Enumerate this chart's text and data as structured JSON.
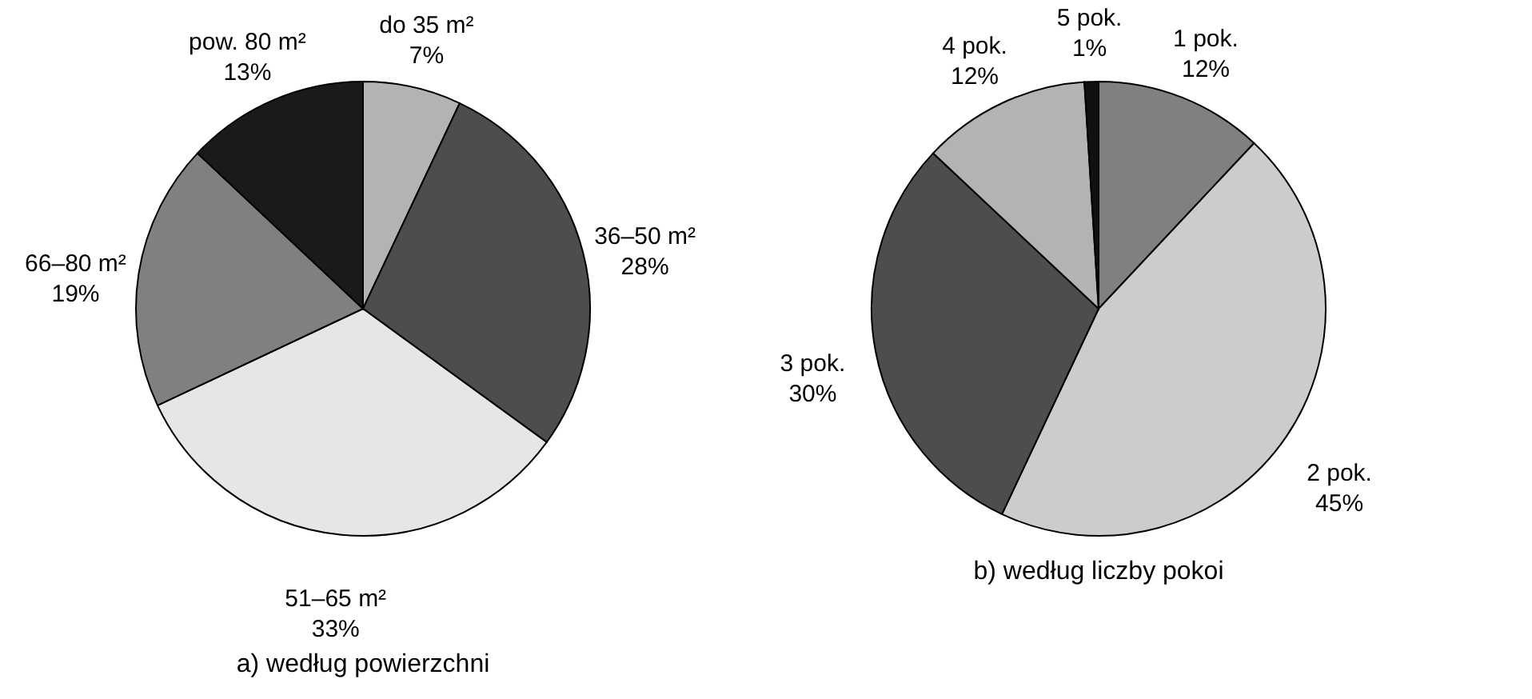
{
  "chart_data": [
    {
      "type": "pie",
      "title": "a) według powierzchni",
      "categories": [
        "do 35 m²",
        "36–50 m²",
        "51–65 m²",
        "66–80 m²",
        "pow. 80 m²"
      ],
      "values": [
        7,
        28,
        33,
        19,
        13
      ],
      "value_labels": [
        "7%",
        "28%",
        "33%",
        "19%",
        "13%"
      ],
      "colors": [
        "#b3b3b3",
        "#4d4d4d",
        "#e6e6e6",
        "#808080",
        "#1a1a1a"
      ]
    },
    {
      "type": "pie",
      "title": "b) według liczby pokoi",
      "categories": [
        "1 pok.",
        "2 pok.",
        "3 pok.",
        "4 pok.",
        "5 pok."
      ],
      "values": [
        12,
        45,
        30,
        12,
        1
      ],
      "value_labels": [
        "12%",
        "45%",
        "30%",
        "12%",
        "1%"
      ],
      "colors": [
        "#808080",
        "#cccccc",
        "#4d4d4d",
        "#b3b3b3",
        "#111111"
      ]
    }
  ]
}
